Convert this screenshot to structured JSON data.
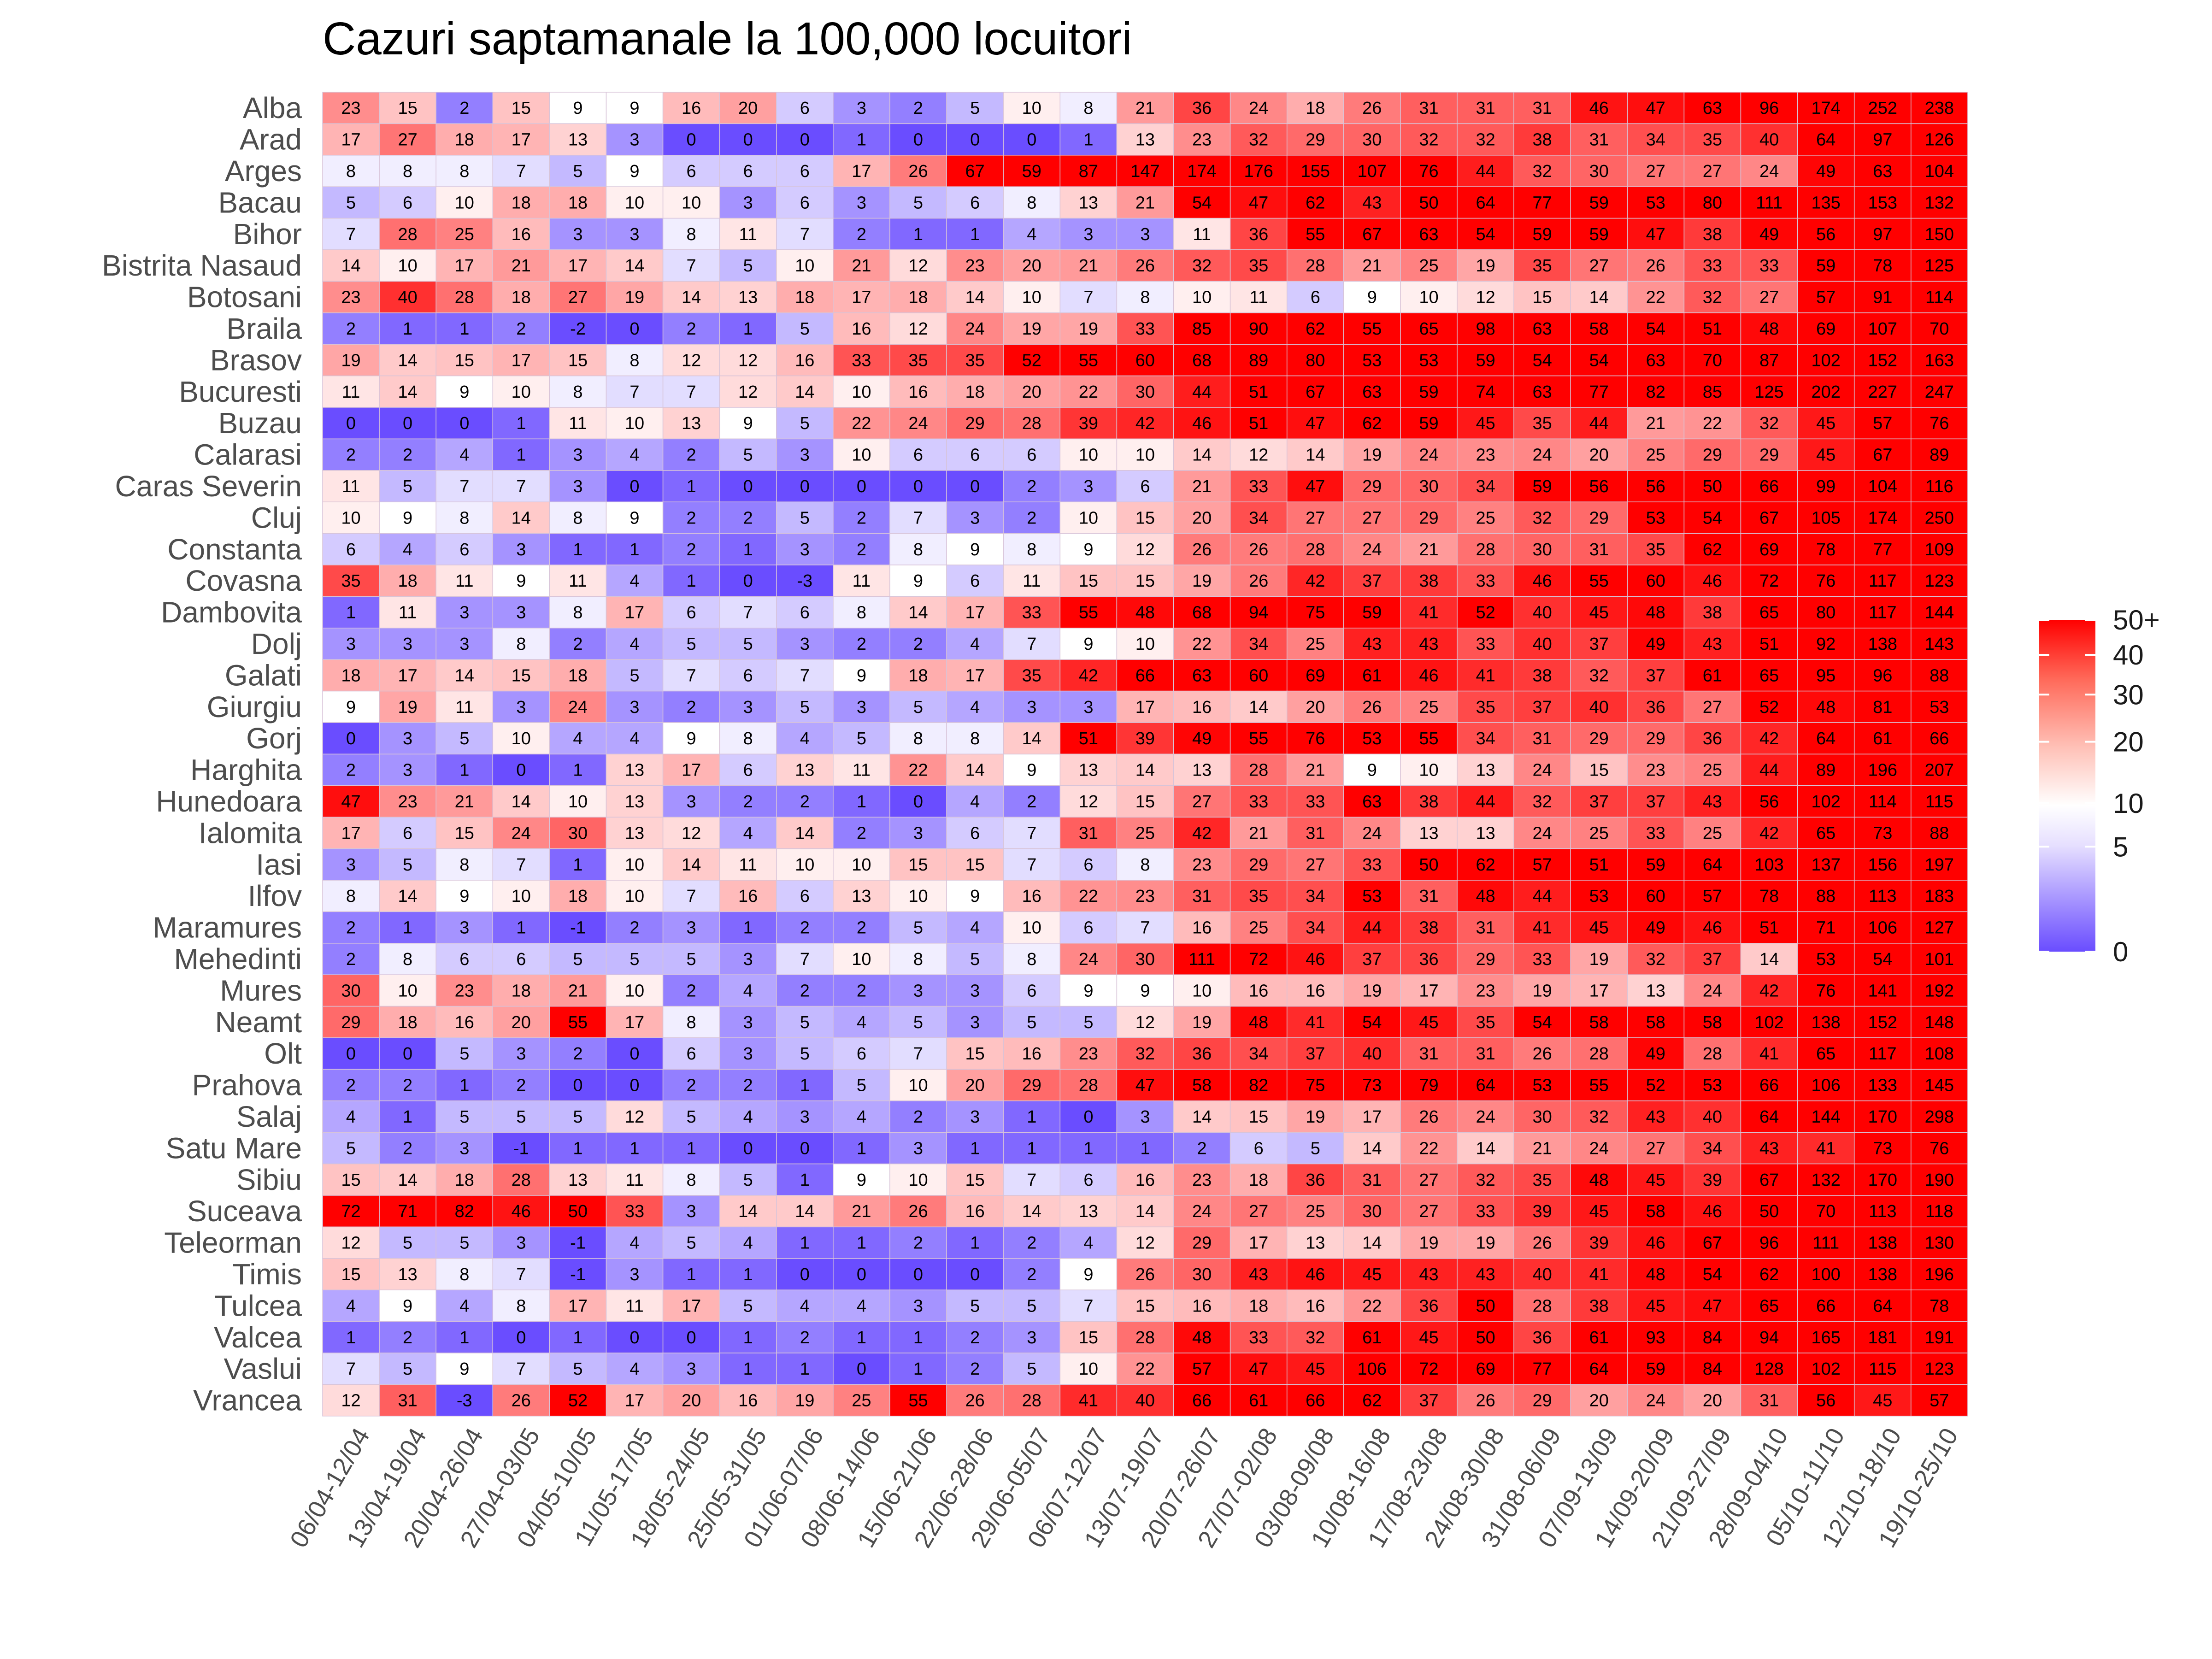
{
  "chart_data": {
    "type": "heatmap",
    "title": "Cazuri saptamanale la 100,000 locuitori",
    "xlabel": "",
    "ylabel": "",
    "columns": [
      "06/04-12/04",
      "13/04-19/04",
      "20/04-26/04",
      "27/04-03/05",
      "04/05-10/05",
      "11/05-17/05",
      "18/05-24/05",
      "25/05-31/05",
      "01/06-07/06",
      "08/06-14/06",
      "15/06-21/06",
      "22/06-28/06",
      "29/06-05/07",
      "06/07-12/07",
      "13/07-19/07",
      "20/07-26/07",
      "27/07-02/08",
      "03/08-09/08",
      "10/08-16/08",
      "17/08-23/08",
      "24/08-30/08",
      "31/08-06/09",
      "07/09-13/09",
      "14/09-20/09",
      "21/09-27/09",
      "28/09-04/10",
      "05/10-11/10",
      "12/10-18/10",
      "19/10-25/10"
    ],
    "rows": [
      "Alba",
      "Arad",
      "Arges",
      "Bacau",
      "Bihor",
      "Bistrita Nasaud",
      "Botosani",
      "Braila",
      "Brasov",
      "Bucuresti",
      "Buzau",
      "Calarasi",
      "Caras Severin",
      "Cluj",
      "Constanta",
      "Covasna",
      "Dambovita",
      "Dolj",
      "Galati",
      "Giurgiu",
      "Gorj",
      "Harghita",
      "Hunedoara",
      "Ialomita",
      "Iasi",
      "Ilfov",
      "Maramures",
      "Mehedinti",
      "Mures",
      "Neamt",
      "Olt",
      "Prahova",
      "Salaj",
      "Satu Mare",
      "Sibiu",
      "Suceava",
      "Teleorman",
      "Timis",
      "Tulcea",
      "Valcea",
      "Vaslui",
      "Vrancea"
    ],
    "values": [
      [
        23,
        15,
        2,
        15,
        9,
        9,
        16,
        20,
        6,
        3,
        2,
        5,
        10,
        8,
        21,
        36,
        24,
        18,
        26,
        31,
        31,
        31,
        46,
        47,
        63,
        96,
        174,
        252,
        238
      ],
      [
        17,
        27,
        18,
        17,
        13,
        3,
        0,
        0,
        0,
        1,
        0,
        0,
        0,
        1,
        13,
        23,
        32,
        29,
        30,
        32,
        32,
        38,
        31,
        34,
        35,
        40,
        64,
        97,
        126
      ],
      [
        8,
        8,
        8,
        7,
        5,
        9,
        6,
        6,
        6,
        17,
        26,
        67,
        59,
        87,
        147,
        174,
        176,
        155,
        107,
        76,
        44,
        32,
        30,
        27,
        27,
        24,
        49,
        63,
        104
      ],
      [
        5,
        6,
        10,
        18,
        18,
        10,
        10,
        3,
        6,
        3,
        5,
        6,
        8,
        13,
        21,
        54,
        47,
        62,
        43,
        50,
        64,
        77,
        59,
        53,
        80,
        111,
        135,
        153,
        132
      ],
      [
        7,
        28,
        25,
        16,
        3,
        3,
        8,
        11,
        7,
        2,
        1,
        1,
        4,
        3,
        3,
        11,
        36,
        55,
        67,
        63,
        54,
        59,
        59,
        47,
        38,
        49,
        56,
        97,
        150
      ],
      [
        14,
        10,
        17,
        21,
        17,
        14,
        7,
        5,
        10,
        21,
        12,
        23,
        20,
        21,
        26,
        32,
        35,
        28,
        21,
        25,
        19,
        35,
        27,
        26,
        33,
        33,
        59,
        78,
        125
      ],
      [
        23,
        40,
        28,
        18,
        27,
        19,
        14,
        13,
        18,
        17,
        18,
        14,
        10,
        7,
        8,
        10,
        11,
        6,
        9,
        10,
        12,
        15,
        14,
        22,
        32,
        27,
        57,
        91,
        114
      ],
      [
        2,
        1,
        1,
        2,
        -2,
        0,
        2,
        1,
        5,
        16,
        12,
        24,
        19,
        19,
        33,
        85,
        90,
        62,
        55,
        65,
        98,
        63,
        58,
        54,
        51,
        48,
        69,
        107,
        70
      ],
      [
        19,
        14,
        15,
        17,
        15,
        8,
        12,
        12,
        16,
        33,
        35,
        35,
        52,
        55,
        60,
        68,
        89,
        80,
        53,
        53,
        59,
        54,
        54,
        63,
        70,
        87,
        102,
        152,
        163
      ],
      [
        11,
        14,
        9,
        10,
        8,
        7,
        7,
        12,
        14,
        10,
        16,
        18,
        20,
        22,
        30,
        44,
        51,
        67,
        63,
        59,
        74,
        63,
        77,
        82,
        85,
        125,
        202,
        227,
        247
      ],
      [
        0,
        0,
        0,
        1,
        11,
        10,
        13,
        9,
        5,
        22,
        24,
        29,
        28,
        39,
        42,
        46,
        51,
        47,
        62,
        59,
        45,
        35,
        44,
        21,
        22,
        32,
        45,
        57,
        76
      ],
      [
        2,
        2,
        4,
        1,
        3,
        4,
        2,
        5,
        3,
        10,
        6,
        6,
        6,
        10,
        10,
        14,
        12,
        14,
        19,
        24,
        23,
        24,
        20,
        25,
        29,
        29,
        45,
        67,
        89
      ],
      [
        11,
        5,
        7,
        7,
        3,
        0,
        1,
        0,
        0,
        0,
        0,
        0,
        2,
        3,
        6,
        21,
        33,
        47,
        29,
        30,
        34,
        59,
        56,
        56,
        50,
        66,
        99,
        104,
        116
      ],
      [
        10,
        9,
        8,
        14,
        8,
        9,
        2,
        2,
        5,
        2,
        7,
        3,
        2,
        10,
        15,
        20,
        34,
        27,
        27,
        29,
        25,
        32,
        29,
        53,
        54,
        67,
        105,
        174,
        250
      ],
      [
        6,
        4,
        6,
        3,
        1,
        1,
        2,
        1,
        3,
        2,
        8,
        9,
        8,
        9,
        12,
        26,
        26,
        28,
        24,
        21,
        28,
        30,
        31,
        35,
        62,
        69,
        78,
        77,
        109
      ],
      [
        35,
        18,
        11,
        9,
        11,
        4,
        1,
        0,
        -3,
        11,
        9,
        6,
        11,
        15,
        15,
        19,
        26,
        42,
        37,
        38,
        33,
        46,
        55,
        60,
        46,
        72,
        76,
        117,
        123
      ],
      [
        1,
        11,
        3,
        3,
        8,
        17,
        6,
        7,
        6,
        8,
        14,
        17,
        33,
        55,
        48,
        68,
        94,
        75,
        59,
        41,
        52,
        40,
        45,
        48,
        38,
        65,
        80,
        117,
        144
      ],
      [
        3,
        3,
        3,
        8,
        2,
        4,
        5,
        5,
        3,
        2,
        2,
        4,
        7,
        9,
        10,
        22,
        34,
        25,
        43,
        43,
        33,
        40,
        37,
        49,
        43,
        51,
        92,
        138,
        143
      ],
      [
        18,
        17,
        14,
        15,
        18,
        5,
        7,
        6,
        7,
        9,
        18,
        17,
        35,
        42,
        66,
        63,
        60,
        69,
        61,
        46,
        41,
        38,
        32,
        37,
        61,
        65,
        95,
        96,
        88
      ],
      [
        9,
        19,
        11,
        3,
        24,
        3,
        2,
        3,
        5,
        3,
        5,
        4,
        3,
        3,
        17,
        16,
        14,
        20,
        26,
        25,
        35,
        37,
        40,
        36,
        27,
        52,
        48,
        81,
        53
      ],
      [
        0,
        3,
        5,
        10,
        4,
        4,
        9,
        8,
        4,
        5,
        8,
        8,
        14,
        51,
        39,
        49,
        55,
        76,
        53,
        55,
        34,
        31,
        29,
        29,
        36,
        42,
        64,
        61,
        66
      ],
      [
        2,
        3,
        1,
        0,
        1,
        13,
        17,
        6,
        13,
        11,
        22,
        14,
        9,
        13,
        14,
        13,
        28,
        21,
        9,
        10,
        13,
        24,
        15,
        23,
        25,
        44,
        89,
        196,
        207
      ],
      [
        47,
        23,
        21,
        14,
        10,
        13,
        3,
        2,
        2,
        1,
        0,
        4,
        2,
        12,
        15,
        27,
        33,
        33,
        63,
        38,
        44,
        32,
        37,
        37,
        43,
        56,
        102,
        114,
        115
      ],
      [
        17,
        6,
        15,
        24,
        30,
        13,
        12,
        4,
        14,
        2,
        3,
        6,
        7,
        31,
        25,
        42,
        21,
        31,
        24,
        13,
        13,
        24,
        25,
        33,
        25,
        42,
        65,
        73,
        88
      ],
      [
        3,
        5,
        8,
        7,
        1,
        10,
        14,
        11,
        10,
        10,
        15,
        15,
        7,
        6,
        8,
        23,
        29,
        27,
        33,
        50,
        62,
        57,
        51,
        59,
        64,
        103,
        137,
        156,
        197
      ],
      [
        8,
        14,
        9,
        10,
        18,
        10,
        7,
        16,
        6,
        13,
        10,
        9,
        16,
        22,
        23,
        31,
        35,
        34,
        53,
        31,
        48,
        44,
        53,
        60,
        57,
        78,
        88,
        113,
        183
      ],
      [
        2,
        1,
        3,
        1,
        -1,
        2,
        3,
        1,
        2,
        2,
        5,
        4,
        10,
        6,
        7,
        16,
        25,
        34,
        44,
        38,
        31,
        41,
        45,
        49,
        46,
        51,
        71,
        106,
        127
      ],
      [
        2,
        8,
        6,
        6,
        5,
        5,
        5,
        3,
        7,
        10,
        8,
        5,
        8,
        24,
        30,
        111,
        72,
        46,
        37,
        36,
        29,
        33,
        19,
        32,
        37,
        14,
        53,
        54,
        101
      ],
      [
        30,
        10,
        23,
        18,
        21,
        10,
        2,
        4,
        2,
        2,
        3,
        3,
        6,
        9,
        9,
        10,
        16,
        16,
        19,
        17,
        23,
        19,
        17,
        13,
        24,
        42,
        76,
        141,
        192
      ],
      [
        29,
        18,
        16,
        20,
        55,
        17,
        8,
        3,
        5,
        4,
        5,
        3,
        5,
        5,
        12,
        19,
        48,
        41,
        54,
        45,
        35,
        54,
        58,
        58,
        58,
        102,
        138,
        152,
        148
      ],
      [
        0,
        0,
        5,
        3,
        2,
        0,
        6,
        3,
        5,
        6,
        7,
        15,
        16,
        23,
        32,
        36,
        34,
        37,
        40,
        31,
        31,
        26,
        28,
        49,
        28,
        41,
        65,
        117,
        108
      ],
      [
        2,
        2,
        1,
        2,
        0,
        0,
        2,
        2,
        1,
        5,
        10,
        20,
        29,
        28,
        47,
        58,
        82,
        75,
        73,
        79,
        64,
        53,
        55,
        52,
        53,
        66,
        106,
        133,
        145
      ],
      [
        4,
        1,
        5,
        5,
        5,
        12,
        5,
        4,
        3,
        4,
        2,
        3,
        1,
        0,
        3,
        14,
        15,
        19,
        17,
        26,
        24,
        30,
        32,
        43,
        40,
        64,
        144,
        170,
        298
      ],
      [
        5,
        2,
        3,
        -1,
        1,
        1,
        1,
        0,
        0,
        1,
        3,
        1,
        1,
        1,
        1,
        2,
        6,
        5,
        14,
        22,
        14,
        21,
        24,
        27,
        34,
        43,
        41,
        73,
        76
      ],
      [
        15,
        14,
        18,
        28,
        13,
        11,
        8,
        5,
        1,
        9,
        10,
        15,
        7,
        6,
        16,
        23,
        18,
        36,
        31,
        27,
        32,
        35,
        48,
        45,
        39,
        67,
        132,
        170,
        190
      ],
      [
        72,
        71,
        82,
        46,
        50,
        33,
        3,
        14,
        14,
        21,
        26,
        16,
        14,
        13,
        14,
        24,
        27,
        25,
        30,
        27,
        33,
        39,
        45,
        58,
        46,
        50,
        70,
        113,
        118
      ],
      [
        12,
        5,
        5,
        3,
        -1,
        4,
        5,
        4,
        1,
        1,
        2,
        1,
        2,
        4,
        12,
        29,
        17,
        13,
        14,
        19,
        19,
        26,
        39,
        46,
        67,
        96,
        111,
        138,
        130
      ],
      [
        15,
        13,
        8,
        7,
        -1,
        3,
        1,
        1,
        0,
        0,
        0,
        0,
        2,
        9,
        26,
        30,
        43,
        46,
        45,
        43,
        43,
        40,
        41,
        48,
        54,
        62,
        100,
        138,
        196
      ],
      [
        4,
        9,
        4,
        8,
        17,
        11,
        17,
        5,
        4,
        4,
        3,
        5,
        5,
        7,
        15,
        16,
        18,
        16,
        22,
        36,
        50,
        28,
        38,
        45,
        47,
        65,
        66,
        64,
        78
      ],
      [
        1,
        2,
        1,
        0,
        1,
        0,
        0,
        1,
        2,
        1,
        1,
        2,
        3,
        15,
        28,
        48,
        33,
        32,
        61,
        45,
        50,
        36,
        61,
        93,
        84,
        94,
        165,
        181,
        191
      ],
      [
        7,
        5,
        9,
        7,
        5,
        4,
        3,
        1,
        1,
        0,
        1,
        2,
        5,
        10,
        22,
        57,
        47,
        45,
        106,
        72,
        69,
        77,
        64,
        59,
        84,
        128,
        102,
        115,
        123
      ],
      [
        12,
        31,
        -3,
        26,
        52,
        17,
        20,
        16,
        19,
        25,
        55,
        26,
        28,
        41,
        40,
        66,
        61,
        66,
        62,
        37,
        26,
        29,
        20,
        24,
        20,
        31,
        56,
        45,
        57
      ]
    ],
    "legend": {
      "title": "",
      "position": "right",
      "labels": [
        "50+",
        "40",
        "30",
        "20",
        "10",
        "5",
        "0"
      ],
      "ticks": [
        50,
        40,
        30,
        20,
        10,
        5,
        0
      ],
      "colors": {
        "low": "#6a4dff",
        "mid": "#ffffff",
        "high": "#ff0000"
      }
    }
  }
}
